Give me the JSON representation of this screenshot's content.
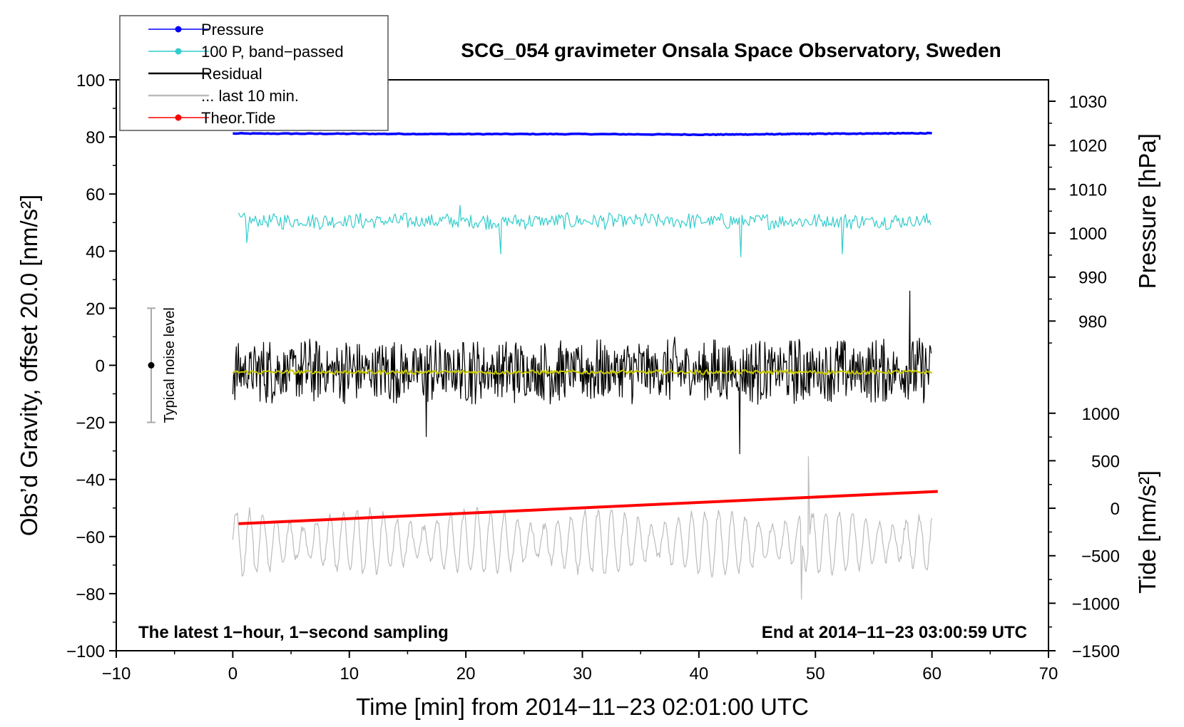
{
  "chart_data": {
    "type": "line",
    "title": "SCG_054 gravimeter Onsala Space Observatory, Sweden",
    "xlabel": "Time [min] from 2014−11−23 02:01:00 UTC",
    "ylabel_left": "Obs’d Gravity, offset 20.0 [nm/s²]",
    "ylabel_pressure": "Pressure [hPa]",
    "ylabel_tide": "Tide [nm/s²]",
    "xlim": [
      -10,
      70
    ],
    "ylim": [
      -100,
      100
    ],
    "x_ticks": [
      {
        "v": -10,
        "label": "−10"
      },
      {
        "v": 0,
        "label": "0"
      },
      {
        "v": 10,
        "label": "10"
      },
      {
        "v": 20,
        "label": "20"
      },
      {
        "v": 30,
        "label": "30"
      },
      {
        "v": 40,
        "label": "40"
      },
      {
        "v": 50,
        "label": "50"
      },
      {
        "v": 60,
        "label": "60"
      },
      {
        "v": 70,
        "label": "70"
      }
    ],
    "y_ticks": [
      {
        "v": 100,
        "label": "100"
      },
      {
        "v": 80,
        "label": "80"
      },
      {
        "v": 60,
        "label": "60"
      },
      {
        "v": 40,
        "label": "40"
      },
      {
        "v": 20,
        "label": "20"
      },
      {
        "v": 0,
        "label": "0"
      },
      {
        "v": -20,
        "label": "−20"
      },
      {
        "v": -40,
        "label": "−40"
      },
      {
        "v": -60,
        "label": "−60"
      },
      {
        "v": -80,
        "label": "−80"
      },
      {
        "v": -100,
        "label": "−100"
      }
    ],
    "pressure_axis": {
      "ticks": [
        {
          "v": 1030,
          "label": "1030"
        },
        {
          "v": 1020,
          "label": "1020"
        },
        {
          "v": 1010,
          "label": "1010"
        },
        {
          "v": 1000,
          "label": "1000"
        },
        {
          "v": 990,
          "label": "990"
        },
        {
          "v": 980,
          "label": "980"
        }
      ],
      "map": {
        "hpa_a": 1030,
        "grav_a": 92.5,
        "hpa_b": 980,
        "grav_b": 15.5
      }
    },
    "tide_axis": {
      "ticks": [
        {
          "v": 1000,
          "label": "1000"
        },
        {
          "v": 500,
          "label": "500"
        },
        {
          "v": 0,
          "label": "0"
        },
        {
          "v": -500,
          "label": "−500"
        },
        {
          "v": -1000,
          "label": "−1000"
        },
        {
          "v": -1500,
          "label": "−1500"
        }
      ],
      "map": {
        "tide_a": 1000,
        "grav_a": -16.8,
        "tide_b": -1500,
        "grav_b": -100
      }
    },
    "series": [
      {
        "name": "Pressure",
        "color": "#0000ff",
        "kind": "smooth",
        "x": [
          0,
          10,
          20,
          30,
          40,
          45,
          50,
          55,
          60
        ],
        "y": [
          81.2,
          81.1,
          81.0,
          81.0,
          80.8,
          80.9,
          81.1,
          81.2,
          81.3
        ]
      },
      {
        "name": "100 P, band−passed",
        "color": "#33cccc",
        "kind": "noise",
        "x_range": [
          0.5,
          60
        ],
        "center": 50.5,
        "amplitude": 3,
        "spikes": [
          {
            "x": 1.2,
            "y": 43
          },
          {
            "x": 23,
            "y": 39
          },
          {
            "x": 43.6,
            "y": 38
          },
          {
            "x": 52.3,
            "y": 39
          },
          {
            "x": 19.5,
            "y": 56
          }
        ]
      },
      {
        "name": "Residual",
        "color": "#000000",
        "kind": "noise",
        "x_range": [
          0,
          60
        ],
        "center": -2,
        "amplitude": 12,
        "spikes": [
          {
            "x": 58.1,
            "y": 26
          },
          {
            "x": 43.5,
            "y": -31
          },
          {
            "x": 16.6,
            "y": -25
          }
        ]
      },
      {
        "name": "Residual (smoothed)",
        "color": "#c8c800",
        "kind": "noise",
        "x_range": [
          0,
          60
        ],
        "center": -2.4,
        "amplitude": 0.8
      },
      {
        "name": "... last 10 min.",
        "color": "#bbbbbb",
        "kind": "oscillation",
        "x_range": [
          0,
          60
        ],
        "center": -62,
        "amplitude": 10,
        "spikes": [
          {
            "x": 49.4,
            "y": -32
          },
          {
            "x": 48.8,
            "y": -82
          }
        ]
      },
      {
        "name": "Theor.Tide",
        "color": "#ff0000",
        "kind": "line",
        "x": [
          0.5,
          60.5
        ],
        "y": [
          -55.5,
          -44.2
        ]
      }
    ],
    "legend": [
      {
        "label": "Pressure",
        "color": "#0000ff",
        "marker": true
      },
      {
        "label": "100 P, band−passed",
        "color": "#33cccc",
        "marker": true
      },
      {
        "label": "Residual",
        "color": "#000000",
        "marker": false
      },
      {
        "label": "... last 10 min.",
        "color": "#bbbbbb",
        "marker": false
      },
      {
        "label": "Theor.Tide",
        "color": "#ff0000",
        "marker": true
      }
    ],
    "noise_bar": {
      "x": -7,
      "y_low": -20,
      "y_high": 20,
      "center": 0,
      "label": "Typical noise level"
    },
    "annotations": {
      "bottom_left": "The latest 1−hour, 1−second sampling",
      "bottom_right": "End at 2014−11−23 03:00:59 UTC"
    }
  }
}
